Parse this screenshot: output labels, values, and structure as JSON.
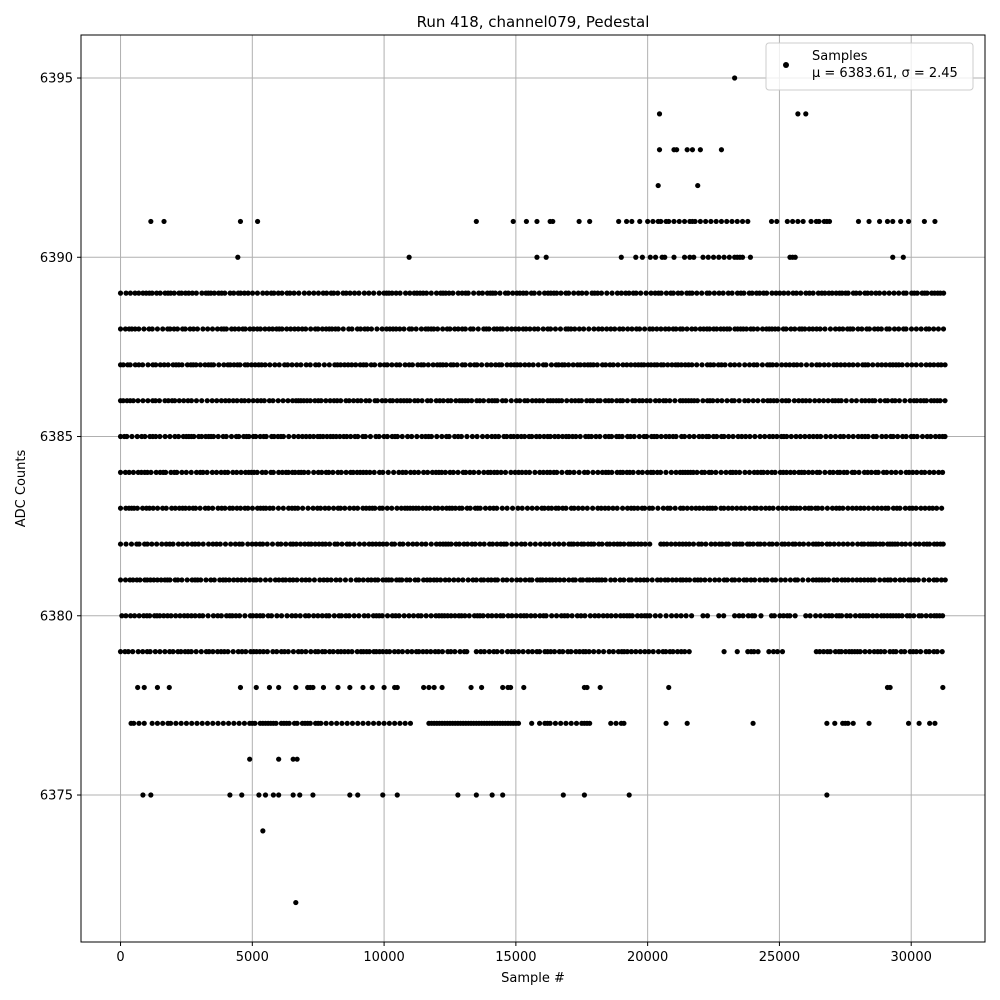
{
  "chart_data": {
    "type": "scatter",
    "title": "Run 418, channel079, Pedestal",
    "xlabel": "Sample #",
    "ylabel": "ADC Counts",
    "xlim": [
      -1500,
      32800
    ],
    "ylim": [
      6370.9,
      6396.2
    ],
    "xticks": [
      0,
      5000,
      10000,
      15000,
      20000,
      25000,
      30000
    ],
    "yticks": [
      6375,
      6380,
      6385,
      6390,
      6395
    ],
    "grid": true,
    "legend": {
      "placement": "top-right",
      "label_line1": "Samples",
      "label_line2": "μ = 6383.61, σ = 2.45"
    },
    "marker_color": "#000000",
    "n_samples_max": 31300,
    "series": [
      {
        "name": "Samples",
        "levels": [
          {
            "y": 6372,
            "x": [
              6650
            ]
          },
          {
            "y": 6374,
            "x": [
              5400
            ]
          },
          {
            "y": 6375,
            "x": [
              850,
              1150,
              4150,
              4600,
              5250,
              5500,
              5800,
              6000,
              6550,
              6800,
              7300,
              8700,
              9000,
              9950,
              10500,
              12800,
              13500,
              14100,
              14500,
              16800,
              17600,
              19300,
              26800
            ]
          },
          {
            "y": 6376,
            "x": [
              4900,
              6000,
              6550,
              6700
            ]
          },
          {
            "y": 6377,
            "x": [
              400,
              500,
              700,
              900,
              1200,
              1400,
              1600,
              1800,
              1900,
              2100,
              2300,
              2500,
              2700,
              2900,
              3100,
              3300,
              3500,
              3700,
              3900,
              4100,
              4300,
              4500,
              4700,
              4900,
              5000,
              5100,
              5300,
              5400,
              5500,
              5600,
              5700,
              5800,
              5900,
              6100,
              6200,
              6300,
              6400,
              6600,
              6700,
              6900,
              7000,
              7100,
              7200,
              7400,
              7500,
              7600,
              7800,
              8000,
              8200,
              8400,
              8600,
              8800,
              9000,
              9200,
              9400,
              9600,
              9800,
              10000,
              10200,
              10400,
              10600,
              10800,
              11000,
              11700,
              11800,
              11900,
              12000,
              12100,
              12200,
              12300,
              12400,
              12500,
              12600,
              12700,
              12800,
              12900,
              13000,
              13100,
              13200,
              13300,
              13400,
              13500,
              13600,
              13700,
              13800,
              13900,
              14000,
              14100,
              14200,
              14300,
              14400,
              14500,
              14600,
              14700,
              14800,
              14900,
              15000,
              15100,
              15600,
              15900,
              16100,
              16200,
              16300,
              16500,
              16700,
              16900,
              17100,
              17300,
              17500,
              17600,
              17700,
              17800,
              18600,
              18800,
              19000,
              19100,
              20700,
              21500,
              24000,
              26800,
              27100,
              27400,
              27500,
              27600,
              27800,
              28400,
              29900,
              30300,
              30700,
              30900
            ]
          },
          {
            "y": 6378,
            "x": [
              650,
              900,
              1400,
              1850,
              4550,
              5150,
              5650,
              6000,
              6650,
              7100,
              7200,
              7300,
              7700,
              8250,
              8700,
              9200,
              9550,
              10000,
              10400,
              10500,
              11500,
              11700,
              11900,
              12200,
              13300,
              13700,
              14500,
              14700,
              14800,
              15300,
              17600,
              17700,
              18200,
              20800,
              29100,
              29200,
              31200
            ]
          },
          {
            "y": 6379,
            "fill": [
              [
                0,
                13200
              ],
              [
                13500,
                21700
              ],
              [
                22900,
                23000
              ],
              [
                23400,
                23500
              ],
              [
                23800,
                24200
              ],
              [
                24600,
                25200
              ],
              [
                26400,
                31300
              ]
            ]
          },
          {
            "y": 6380,
            "fill": [
              [
                50,
                20500
              ],
              [
                20700,
                21700
              ],
              [
                22100,
                22300
              ],
              [
                22700,
                22900
              ],
              [
                23300,
                24100
              ],
              [
                24300,
                24400
              ],
              [
                24700,
                25700
              ],
              [
                26000,
                31300
              ]
            ]
          },
          {
            "y": 6381,
            "fill": [
              [
                0,
                31300
              ]
            ]
          },
          {
            "y": 6382,
            "fill": [
              [
                0,
                20200
              ],
              [
                20500,
                31300
              ]
            ]
          },
          {
            "y": 6383,
            "fill": [
              [
                0,
                31300
              ]
            ]
          },
          {
            "y": 6384,
            "fill": [
              [
                0,
                31300
              ]
            ]
          },
          {
            "y": 6385,
            "fill": [
              [
                0,
                31300
              ]
            ]
          },
          {
            "y": 6386,
            "fill": [
              [
                0,
                31300
              ]
            ]
          },
          {
            "y": 6387,
            "fill": [
              [
                0,
                31300
              ]
            ]
          },
          {
            "y": 6388,
            "fill": [
              [
                0,
                31300
              ]
            ]
          },
          {
            "y": 6389,
            "fill": [
              [
                0,
                31300
              ]
            ]
          },
          {
            "y": 6390,
            "x": [
              4450,
              10950,
              15800,
              16150,
              19000,
              19550,
              19800,
              20100,
              20300,
              20550,
              20650,
              21000,
              21400,
              21600,
              21750,
              22100,
              22300,
              22500,
              22700,
              22900,
              23100,
              23300,
              23400,
              23500,
              23600,
              23900,
              25400,
              25500,
              25600,
              29300,
              29700
            ]
          },
          {
            "y": 6391,
            "x": [
              1150,
              1650,
              4550,
              5200,
              13500,
              14900,
              15400,
              15800,
              16300,
              16400,
              17400,
              17800,
              18900,
              19200,
              19400,
              19700,
              20000,
              20200,
              20400,
              20500,
              20700,
              20800,
              21000,
              21200,
              21400,
              21600,
              21700,
              21800,
              22000,
              22200,
              22400,
              22600,
              22800,
              23000,
              23200,
              23400,
              23600,
              23800,
              24700,
              24900,
              25300,
              25500,
              25700,
              25900,
              26200,
              26400,
              26500,
              26700,
              26800,
              26900,
              28000,
              28400,
              28800,
              29100,
              29300,
              29600,
              29900,
              30500,
              30900
            ]
          },
          {
            "y": 6392,
            "x": [
              20400,
              21900
            ]
          },
          {
            "y": 6393,
            "x": [
              20450,
              21000,
              21100,
              21500,
              21700,
              22000,
              22800
            ]
          },
          {
            "y": 6394,
            "x": [
              20450,
              25700,
              26000
            ]
          },
          {
            "y": 6395,
            "x": [
              23300
            ]
          }
        ]
      }
    ]
  }
}
